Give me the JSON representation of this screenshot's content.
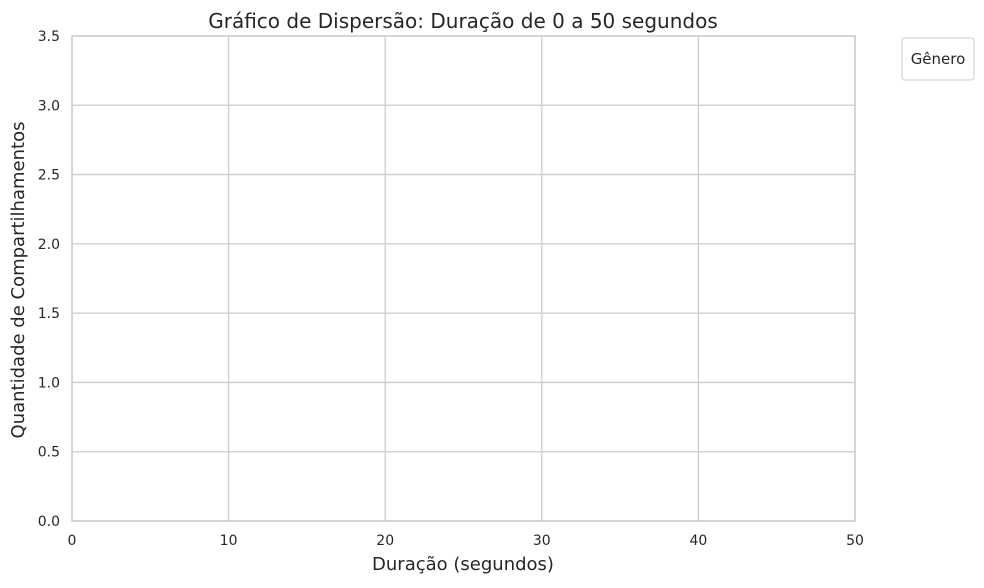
{
  "chart_data": {
    "type": "scatter",
    "title": "Gráfico de Dispersão: Duração de 0 a 50 segundos",
    "xlabel": "Duração (segundos)",
    "ylabel": "Quantidade de Compartilhamentos",
    "xlim": [
      0,
      50
    ],
    "ylim": [
      0,
      3.5
    ],
    "x_ticks": [
      "0",
      "10",
      "20",
      "30",
      "40",
      "50"
    ],
    "y_ticks": [
      "0.0",
      "0.5",
      "1.0",
      "1.5",
      "2.0",
      "2.5",
      "3.0",
      "3.5"
    ],
    "grid": true,
    "legend": {
      "title": "Gênero",
      "placement": "outside-top-right",
      "entries": []
    },
    "series": [],
    "colors": {
      "grid": "#cccccc",
      "axes_edge": "#cccccc",
      "background": "#ffffff",
      "text": "#262626"
    }
  }
}
